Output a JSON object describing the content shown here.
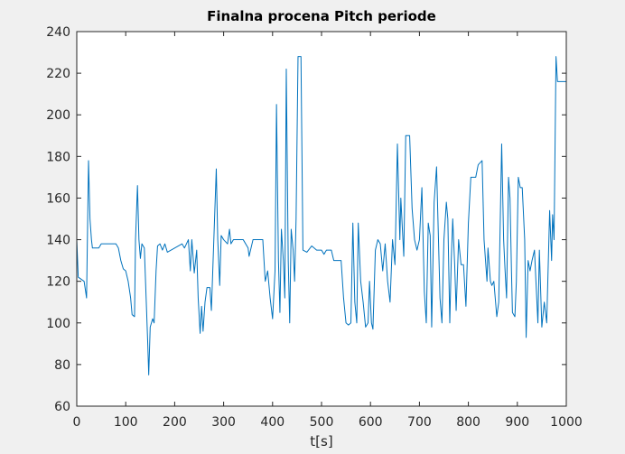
{
  "chart_data": {
    "type": "line",
    "title": "Finalna procena Pitch periode",
    "x_label": "t[s]",
    "x": [
      0,
      3,
      15,
      20,
      24,
      27,
      30,
      32,
      45,
      50,
      80,
      85,
      90,
      95,
      100,
      105,
      110,
      113,
      118,
      120,
      124,
      127,
      130,
      133,
      138,
      142,
      145,
      147,
      150,
      155,
      158,
      162,
      165,
      170,
      175,
      180,
      185,
      200,
      215,
      220,
      228,
      232,
      235,
      240,
      245,
      248,
      252,
      255,
      258,
      262,
      266,
      272,
      275,
      280,
      285,
      288,
      292,
      295,
      300,
      308,
      312,
      315,
      320,
      340,
      350,
      352,
      360,
      380,
      385,
      390,
      395,
      400,
      405,
      408,
      412,
      415,
      418,
      422,
      425,
      428,
      432,
      435,
      438,
      442,
      445,
      448,
      452,
      458,
      462,
      470,
      480,
      490,
      500,
      505,
      510,
      520,
      525,
      535,
      540,
      545,
      550,
      555,
      560,
      564,
      568,
      572,
      575,
      580,
      585,
      590,
      595,
      598,
      602,
      605,
      610,
      615,
      620,
      625,
      630,
      635,
      640,
      645,
      650,
      655,
      660,
      662,
      668,
      672,
      680,
      685,
      690,
      695,
      700,
      705,
      710,
      714,
      718,
      722,
      725,
      730,
      735,
      740,
      742,
      746,
      750,
      755,
      758,
      762,
      765,
      768,
      772,
      775,
      780,
      785,
      790,
      795,
      800,
      805,
      815,
      820,
      828,
      832,
      838,
      840,
      845,
      848,
      852,
      858,
      862,
      868,
      872,
      875,
      878,
      882,
      885,
      888,
      890,
      895,
      898,
      902,
      906,
      910,
      915,
      918,
      922,
      926,
      930,
      935,
      938,
      942,
      945,
      950,
      955,
      960,
      966,
      970,
      972,
      975,
      979,
      982,
      1000
    ],
    "values": [
      140,
      122,
      120,
      112,
      178,
      150,
      140,
      136,
      136,
      138,
      138,
      136,
      130,
      126,
      125,
      120,
      112,
      104,
      103,
      140,
      166,
      140,
      131,
      138,
      136,
      110,
      90,
      75,
      98,
      102,
      100,
      125,
      137,
      138,
      135,
      138,
      134,
      136,
      138,
      136,
      140,
      125,
      140,
      124,
      135,
      112,
      95,
      108,
      96,
      110,
      117,
      117,
      106,
      140,
      174,
      140,
      118,
      142,
      140,
      138,
      145,
      138,
      140,
      140,
      136,
      132,
      140,
      140,
      120,
      125,
      112,
      102,
      125,
      205,
      130,
      105,
      145,
      130,
      112,
      222,
      130,
      100,
      145,
      135,
      120,
      150,
      228,
      228,
      135,
      134,
      137,
      135,
      135,
      133,
      135,
      135,
      130,
      130,
      130,
      112,
      100,
      99,
      100,
      148,
      110,
      100,
      148,
      120,
      110,
      98,
      100,
      120,
      100,
      97,
      135,
      140,
      138,
      125,
      138,
      120,
      110,
      140,
      128,
      186,
      140,
      160,
      132,
      190,
      190,
      155,
      140,
      135,
      140,
      165,
      115,
      100,
      148,
      142,
      98,
      158,
      175,
      130,
      112,
      100,
      140,
      158,
      150,
      100,
      130,
      150,
      128,
      106,
      140,
      128,
      128,
      108,
      148,
      170,
      170,
      176,
      178,
      140,
      120,
      136,
      120,
      118,
      120,
      103,
      110,
      186,
      140,
      125,
      112,
      170,
      160,
      125,
      105,
      103,
      120,
      170,
      165,
      165,
      140,
      93,
      130,
      125,
      130,
      135,
      120,
      100,
      135,
      98,
      110,
      100,
      154,
      130,
      152,
      140,
      228,
      216,
      216
    ],
    "color": "#0072bd",
    "xlim": [
      0,
      1000
    ],
    "xticks": [
      0,
      100,
      200,
      300,
      400,
      500,
      600,
      700,
      800,
      900,
      1000
    ],
    "ylim": [
      60,
      240
    ],
    "yticks": [
      60,
      80,
      100,
      120,
      140,
      160,
      180,
      200,
      220,
      240
    ]
  }
}
